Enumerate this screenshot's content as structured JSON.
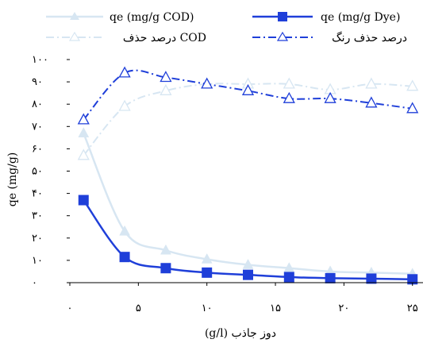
{
  "chart_data": {
    "type": "line",
    "xlabel": "دوز جاذب (g/l)",
    "ylabel": "qe (mg/g)",
    "xlim": [
      0,
      26
    ],
    "ylim": [
      0,
      100
    ],
    "x_ticks": [
      0,
      5,
      10,
      15,
      20,
      25
    ],
    "x_tick_labels": [
      "۰",
      "۵",
      "۱۰",
      "۱۵",
      "۲۰",
      "۲۵"
    ],
    "y_ticks": [
      0,
      10,
      20,
      30,
      40,
      50,
      60,
      70,
      80,
      90,
      100
    ],
    "y_tick_labels": [
      "۰",
      "۱۰",
      "۲۰",
      "۳۰",
      "۴۰",
      "۵۰",
      "۶۰",
      "۷۰",
      "۸۰",
      "۹۰",
      "۱۰۰"
    ],
    "grid": false,
    "legend_position": "top",
    "series": [
      {
        "name": "qe (mg/g COD)",
        "style": "solid",
        "marker": "filled-triangle",
        "color": "#d7e6f2",
        "x": [
          1,
          4,
          7,
          10,
          13,
          16,
          19,
          22,
          25
        ],
        "y": [
          67,
          23,
          14.5,
          10.5,
          8,
          6.5,
          5,
          4.5,
          4
        ]
      },
      {
        "name": "qe (mg/g Dye)",
        "style": "solid",
        "marker": "filled-square",
        "color": "#1f3fd9",
        "x": [
          1,
          4,
          7,
          10,
          13,
          16,
          19,
          22,
          25
        ],
        "y": [
          37,
          11.5,
          6.5,
          4.5,
          3.5,
          2.5,
          2,
          1.8,
          1.5
        ]
      },
      {
        "name": "درصد حذف COD",
        "style": "dashdot",
        "marker": "open-triangle",
        "color": "#d7e6f2",
        "x": [
          1,
          4,
          7,
          10,
          13,
          16,
          19,
          22,
          25
        ],
        "y": [
          57,
          79,
          86,
          89,
          89,
          89,
          86.5,
          89,
          88
        ]
      },
      {
        "name": "درصد حذف رنگ",
        "style": "dashdot",
        "marker": "open-triangle",
        "color": "#1f3fd9",
        "x": [
          1,
          4,
          7,
          10,
          13,
          16,
          19,
          22,
          25
        ],
        "y": [
          73,
          94,
          92,
          89,
          86,
          82.5,
          82.5,
          80.5,
          78
        ]
      }
    ]
  }
}
